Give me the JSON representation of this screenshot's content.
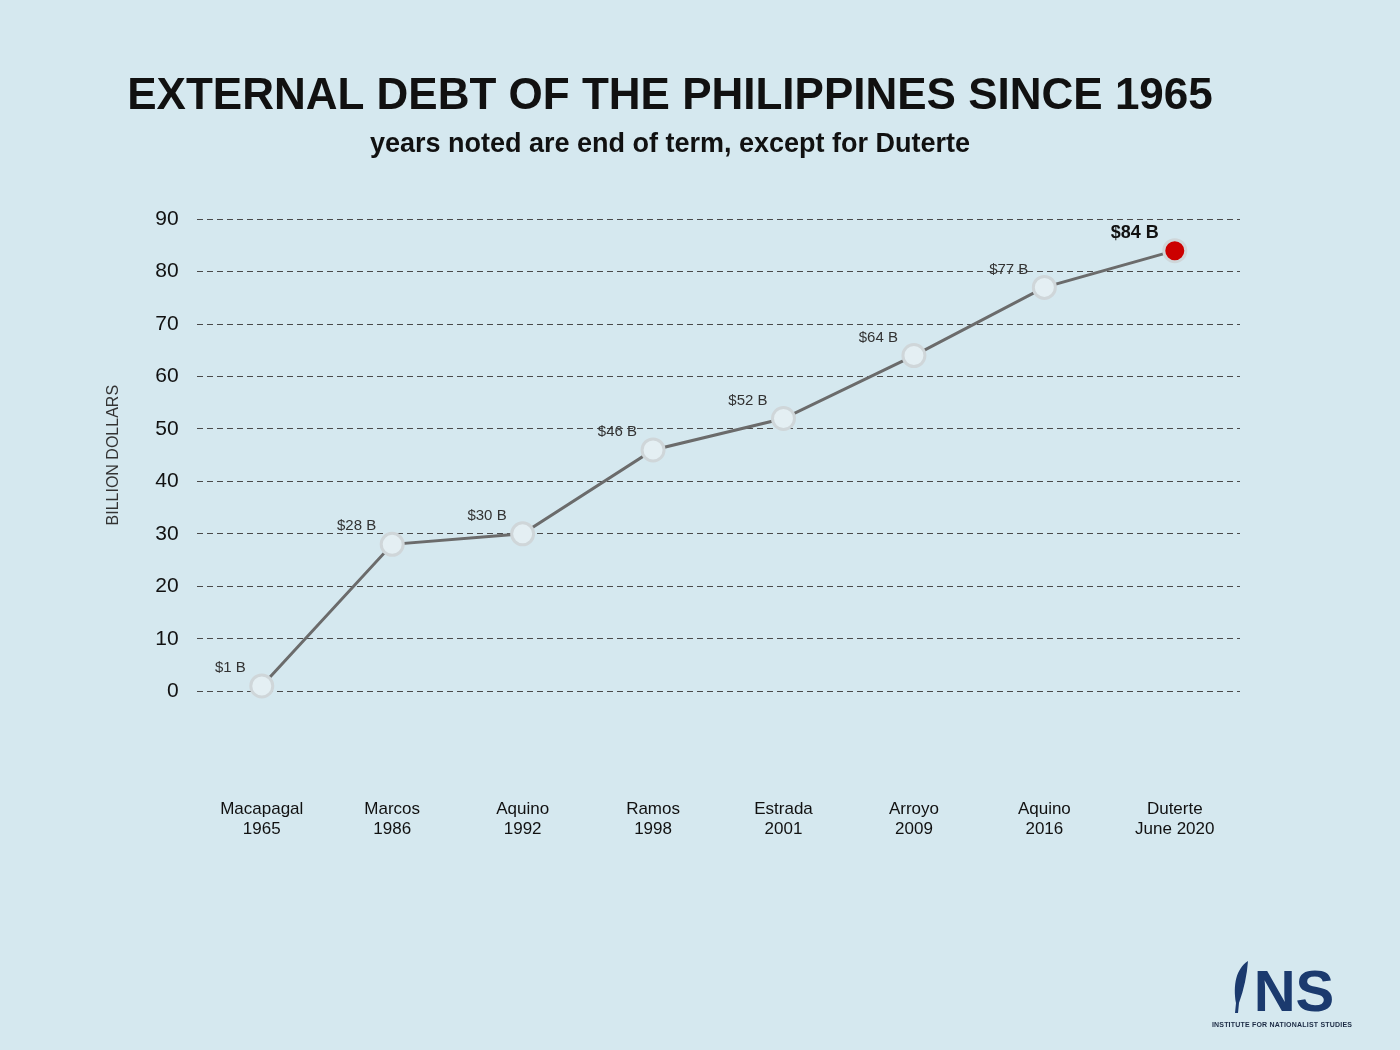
{
  "chart_data": {
    "type": "line",
    "title": "EXTERNAL DEBT OF THE PHILIPPINES SINCE 1965",
    "subtitle": "years noted are end of term, except for Duterte",
    "y_label": "BILLION DOLLARS",
    "categories": [
      [
        "Macapagal",
        "1965"
      ],
      [
        "Marcos",
        "1986"
      ],
      [
        "Aquino",
        "1992"
      ],
      [
        "Ramos",
        "1998"
      ],
      [
        "Estrada",
        "2001"
      ],
      [
        "Arroyo",
        "2009"
      ],
      [
        "Aquino",
        "2016"
      ],
      [
        "Duterte",
        "June 2020"
      ]
    ],
    "values": [
      1,
      28,
      30,
      46,
      52,
      64,
      77,
      84
    ],
    "value_labels": [
      "$1 B",
      "$28 B",
      "$30 B",
      "$46 B",
      "$52 B",
      "$64 B",
      "$77 B",
      "$84 B"
    ],
    "data_labels": true,
    "color": "#6b6b6b",
    "colors": [
      "#e4eff3",
      "#e4eff3",
      "#e4eff3",
      "#e4eff3",
      "#e4eff3",
      "#e4eff3",
      "#e4eff3",
      "#cc0000"
    ],
    "marker": "circle",
    "ylim": [
      0,
      90
    ],
    "yticks": [
      0,
      10,
      20,
      30,
      40,
      50,
      60,
      70,
      80,
      90
    ],
    "grid": true
  },
  "logo": {
    "text": "NS",
    "caption": "INSTITUTE FOR NATIONALIST STUDIES"
  }
}
